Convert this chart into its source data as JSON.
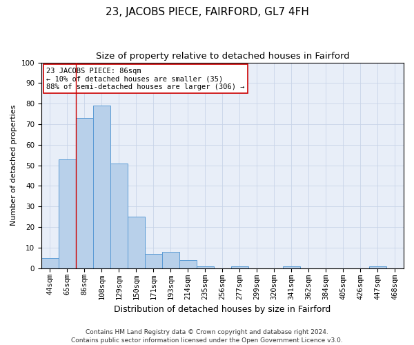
{
  "title": "23, JACOBS PIECE, FAIRFORD, GL7 4FH",
  "subtitle": "Size of property relative to detached houses in Fairford",
  "xlabel": "Distribution of detached houses by size in Fairford",
  "ylabel": "Number of detached properties",
  "categories": [
    "44sqm",
    "65sqm",
    "86sqm",
    "108sqm",
    "129sqm",
    "150sqm",
    "171sqm",
    "193sqm",
    "214sqm",
    "235sqm",
    "256sqm",
    "277sqm",
    "299sqm",
    "320sqm",
    "341sqm",
    "362sqm",
    "384sqm",
    "405sqm",
    "426sqm",
    "447sqm",
    "468sqm"
  ],
  "values": [
    5,
    53,
    73,
    79,
    51,
    25,
    7,
    8,
    4,
    1,
    0,
    1,
    0,
    0,
    1,
    0,
    0,
    0,
    0,
    1,
    0
  ],
  "bar_color": "#b8d0ea",
  "bar_edge_color": "#5b9bd5",
  "red_line_x": 1.5,
  "annotation_text": "23 JACOBS PIECE: 86sqm\n← 10% of detached houses are smaller (35)\n88% of semi-detached houses are larger (306) →",
  "annotation_box_color": "#ffffff",
  "annotation_box_edge_color": "#cc0000",
  "ylim": [
    0,
    100
  ],
  "yticks": [
    0,
    10,
    20,
    30,
    40,
    50,
    60,
    70,
    80,
    90,
    100
  ],
  "grid_color": "#c8d4e8",
  "background_color": "#e8eef8",
  "footer_text": "Contains HM Land Registry data © Crown copyright and database right 2024.\nContains public sector information licensed under the Open Government Licence v3.0.",
  "title_fontsize": 11,
  "subtitle_fontsize": 9.5,
  "xlabel_fontsize": 9,
  "ylabel_fontsize": 8,
  "tick_fontsize": 7.5,
  "footer_fontsize": 6.5,
  "annot_fontsize": 7.5
}
